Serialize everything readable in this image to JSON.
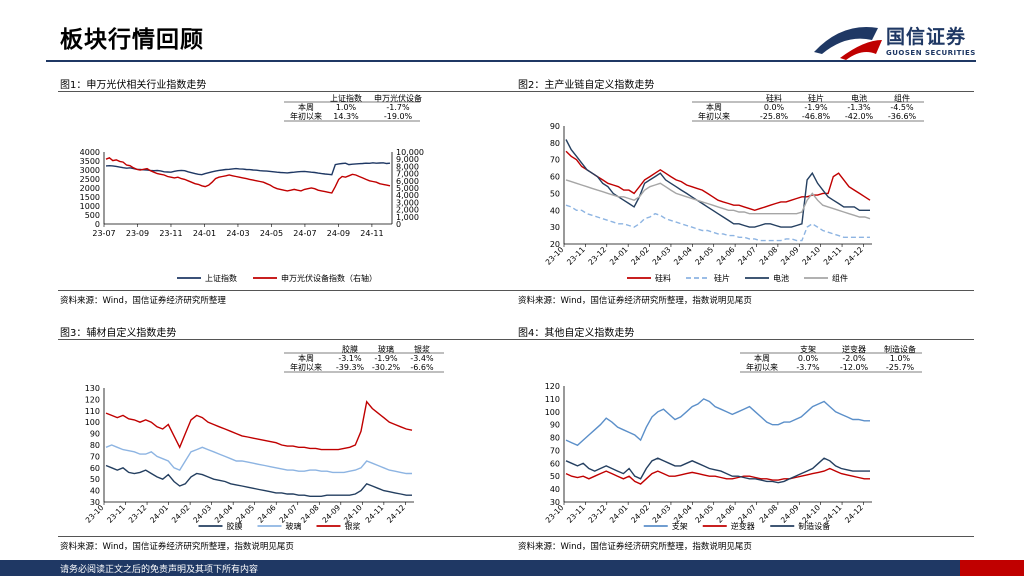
{
  "page": {
    "title": "板块行情回顾",
    "logo_cn": "国信证券",
    "logo_en": "GUOSEN SECURITIES",
    "footer": "请务必阅读正文之后的免责声明及其项下所有内容"
  },
  "colors": {
    "navy": "#1f3864",
    "red": "#c00000",
    "blue": "#243f60",
    "lightblue": "#8db4e2",
    "gray": "#a6a6a6",
    "midblue": "#5b8fc9"
  },
  "chart_data": [
    {
      "id": "c1",
      "type": "line",
      "title": "图1：申万光伏相关行业指数走势",
      "source": "资料来源：Wind，国信证券经济研究所整理",
      "stat_table": {
        "columns": [
          "上证指数",
          "申万光伏设备"
        ],
        "rows": [
          {
            "label": "本周",
            "values": [
              "1.0%",
              "-1.7%"
            ]
          },
          {
            "label": "年初以来",
            "values": [
              "14.3%",
              "-19.0%"
            ]
          }
        ]
      },
      "x_ticks": [
        "23-07",
        "23-09",
        "23-11",
        "24-01",
        "24-03",
        "24-05",
        "24-07",
        "24-09",
        "24-11"
      ],
      "left_axis": {
        "min": 0,
        "max": 4000,
        "ticks": [
          "0",
          "500",
          "1000",
          "1500",
          "2000",
          "2500",
          "3000",
          "3500",
          "4000"
        ]
      },
      "right_axis": {
        "min": 0,
        "max": 10000,
        "ticks": [
          "0",
          "1,000",
          "2,000",
          "3,000",
          "4,000",
          "5,000",
          "6,000",
          "7,000",
          "8,000",
          "9,000",
          "10,000"
        ]
      },
      "series": [
        {
          "name": "上证指数",
          "axis": "left",
          "color": "#1f3864",
          "values": [
            3230,
            3240,
            3230,
            3200,
            3160,
            3130,
            3100,
            3120,
            3080,
            3040,
            3030,
            3010,
            3000,
            2980,
            2960,
            2970,
            2950,
            2900,
            2890,
            2880,
            2930,
            2960,
            2980,
            2960,
            2900,
            2850,
            2800,
            2760,
            2740,
            2800,
            2850,
            2900,
            2940,
            2980,
            3000,
            3030,
            3040,
            3060,
            3080,
            3060,
            3050,
            3030,
            3020,
            3000,
            2990,
            2960,
            2950,
            2940,
            2920,
            2900,
            2880,
            2860,
            2850,
            2840,
            2860,
            2880,
            2900,
            2910,
            2920,
            2900,
            2880,
            2860,
            2830,
            2800,
            2780,
            2760,
            2740,
            3300,
            3340,
            3360,
            3380,
            3300,
            3320,
            3340,
            3350,
            3360,
            3380,
            3370,
            3400,
            3380,
            3390,
            3400,
            3360,
            3380
          ]
        },
        {
          "name": "申万光伏设备指数（右轴）",
          "axis": "right",
          "color": "#c00000",
          "values": [
            9000,
            9200,
            8800,
            8900,
            8700,
            8600,
            8200,
            8100,
            7800,
            7600,
            7500,
            7600,
            7700,
            7400,
            7200,
            7000,
            6900,
            6800,
            6600,
            6500,
            6400,
            6500,
            6300,
            6200,
            6000,
            5800,
            5600,
            5500,
            5300,
            5200,
            5400,
            5800,
            6300,
            6500,
            6600,
            6700,
            6800,
            6700,
            6600,
            6500,
            6400,
            6300,
            6200,
            6100,
            6000,
            5900,
            5800,
            5600,
            5400,
            5100,
            4900,
            4800,
            4700,
            4600,
            4700,
            4800,
            4700,
            4600,
            4800,
            4900,
            5000,
            4900,
            4700,
            4600,
            4500,
            4400,
            4300,
            5200,
            6200,
            6600,
            6500,
            6700,
            6900,
            6800,
            6600,
            6400,
            6200,
            6000,
            5900,
            5800,
            5600,
            5500,
            5400,
            5300
          ]
        }
      ]
    },
    {
      "id": "c2",
      "type": "line",
      "title": "图2：主产业链自定义指数走势",
      "source": "资料来源：Wind，国信证券经济研究所整理，指数说明见尾页",
      "stat_table": {
        "columns": [
          "硅料",
          "硅片",
          "电池",
          "组件"
        ],
        "rows": [
          {
            "label": "本周",
            "values": [
              "0.0%",
              "-1.9%",
              "-1.3%",
              "-4.5%"
            ]
          },
          {
            "label": "年初以来",
            "values": [
              "-25.8%",
              "-46.8%",
              "-42.0%",
              "-36.6%"
            ]
          }
        ]
      },
      "x_ticks": [
        "23-10",
        "23-11",
        "23-12",
        "24-01",
        "24-02",
        "24-03",
        "24-04",
        "24-05",
        "24-06",
        "24-07",
        "24-08",
        "24-09",
        "24-10",
        "24-11",
        "24-12"
      ],
      "y_axis": {
        "min": 20,
        "max": 90,
        "ticks": [
          "20",
          "30",
          "40",
          "50",
          "60",
          "70",
          "80",
          "90"
        ]
      },
      "series": [
        {
          "name": "硅料",
          "color": "#c00000",
          "values": [
            75,
            72,
            70,
            66,
            64,
            62,
            60,
            58,
            56,
            55,
            54,
            52,
            52,
            50,
            54,
            58,
            60,
            62,
            64,
            62,
            60,
            58,
            57,
            55,
            54,
            53,
            52,
            50,
            48,
            46,
            45,
            44,
            43,
            43,
            42,
            41,
            40,
            41,
            42,
            43,
            44,
            45,
            45,
            46,
            47,
            48,
            48,
            49,
            49,
            50,
            50,
            60,
            62,
            58,
            54,
            52,
            50,
            48,
            46
          ]
        },
        {
          "name": "硅片",
          "color": "#8db4e2",
          "dash": "5,3",
          "values": [
            43,
            42,
            40,
            40,
            38,
            37,
            36,
            35,
            34,
            33,
            32,
            32,
            31,
            30,
            32,
            35,
            36,
            38,
            37,
            35,
            34,
            33,
            32,
            31,
            30,
            29,
            28,
            28,
            27,
            26,
            26,
            25,
            25,
            24,
            24,
            23,
            23,
            22,
            22,
            22,
            22,
            22,
            23,
            23,
            22,
            22,
            30,
            32,
            30,
            28,
            27,
            26,
            25,
            24,
            24,
            24,
            24,
            24,
            24
          ]
        },
        {
          "name": "电池",
          "color": "#243f60",
          "values": [
            82,
            76,
            72,
            68,
            64,
            62,
            60,
            56,
            54,
            50,
            48,
            46,
            44,
            42,
            48,
            56,
            58,
            60,
            62,
            58,
            56,
            54,
            52,
            50,
            48,
            46,
            44,
            42,
            40,
            38,
            36,
            34,
            32,
            32,
            31,
            30,
            30,
            31,
            32,
            32,
            31,
            30,
            30,
            30,
            31,
            32,
            58,
            62,
            56,
            52,
            48,
            46,
            44,
            42,
            42,
            42,
            40,
            40,
            40
          ]
        },
        {
          "name": "组件",
          "color": "#a6a6a6",
          "values": [
            58,
            57,
            56,
            55,
            54,
            53,
            52,
            51,
            50,
            49,
            48,
            48,
            47,
            46,
            48,
            52,
            54,
            55,
            56,
            54,
            52,
            50,
            49,
            48,
            47,
            46,
            45,
            44,
            43,
            42,
            41,
            40,
            40,
            39,
            39,
            38,
            38,
            38,
            38,
            38,
            38,
            38,
            38,
            38,
            38,
            39,
            46,
            50,
            46,
            43,
            42,
            41,
            40,
            39,
            38,
            37,
            36,
            36,
            35
          ]
        }
      ]
    },
    {
      "id": "c3",
      "type": "line",
      "title": "图3：辅材自定义指数走势",
      "source": "资料来源：Wind，国信证券经济研究所整理，指数说明见尾页",
      "stat_table": {
        "columns": [
          "胶膜",
          "玻璃",
          "银浆"
        ],
        "rows": [
          {
            "label": "本周",
            "values": [
              "-3.1%",
              "-1.9%",
              "-3.4%"
            ]
          },
          {
            "label": "年初以来",
            "values": [
              "-39.3%",
              "-30.2%",
              "-6.6%"
            ]
          }
        ]
      },
      "x_ticks": [
        "23-10",
        "23-11",
        "23-12",
        "24-01",
        "24-02",
        "24-03",
        "24-04",
        "24-05",
        "24-06",
        "24-07",
        "24-08",
        "24-09",
        "24-10",
        "24-11",
        "24-12"
      ],
      "y_axis": {
        "min": 30,
        "max": 130,
        "ticks": [
          "30",
          "40",
          "50",
          "60",
          "70",
          "80",
          "90",
          "100",
          "110",
          "120",
          "130"
        ]
      },
      "series": [
        {
          "name": "胶膜",
          "color": "#243f60",
          "values": [
            62,
            60,
            58,
            60,
            56,
            55,
            56,
            58,
            55,
            52,
            50,
            54,
            48,
            44,
            46,
            52,
            55,
            54,
            52,
            50,
            49,
            48,
            46,
            45,
            44,
            43,
            42,
            41,
            40,
            39,
            38,
            38,
            37,
            37,
            36,
            36,
            35,
            35,
            35,
            36,
            36,
            36,
            36,
            36,
            37,
            40,
            46,
            44,
            42,
            40,
            39,
            38,
            37,
            36,
            36
          ]
        },
        {
          "name": "玻璃",
          "color": "#8db4e2",
          "values": [
            78,
            80,
            78,
            76,
            75,
            74,
            72,
            72,
            74,
            70,
            68,
            66,
            60,
            58,
            66,
            74,
            76,
            78,
            76,
            74,
            72,
            70,
            68,
            66,
            66,
            65,
            64,
            63,
            62,
            61,
            60,
            59,
            58,
            58,
            57,
            57,
            58,
            58,
            57,
            57,
            56,
            56,
            56,
            57,
            58,
            60,
            66,
            64,
            62,
            60,
            58,
            57,
            56,
            55,
            55
          ]
        },
        {
          "name": "银浆",
          "color": "#c00000",
          "values": [
            108,
            106,
            104,
            106,
            103,
            102,
            100,
            102,
            100,
            96,
            94,
            98,
            88,
            78,
            90,
            102,
            106,
            104,
            100,
            98,
            96,
            94,
            92,
            90,
            88,
            87,
            86,
            85,
            84,
            83,
            82,
            80,
            79,
            79,
            78,
            78,
            77,
            77,
            76,
            76,
            76,
            76,
            77,
            78,
            80,
            92,
            118,
            112,
            108,
            104,
            100,
            98,
            96,
            94,
            93
          ]
        }
      ]
    },
    {
      "id": "c4",
      "type": "line",
      "title": "图4：其他自定义指数走势",
      "source": "资料来源：Wind，国信证券经济研究所整理，指数说明见尾页",
      "stat_table": {
        "columns": [
          "支架",
          "逆变器",
          "制造设备"
        ],
        "rows": [
          {
            "label": "本周",
            "values": [
              "0.0%",
              "-2.0%",
              "1.0%"
            ]
          },
          {
            "label": "年初以来",
            "values": [
              "-3.7%",
              "-12.0%",
              "-25.7%"
            ]
          }
        ]
      },
      "x_ticks": [
        "23-10",
        "23-11",
        "23-12",
        "24-01",
        "24-02",
        "24-03",
        "24-04",
        "24-05",
        "24-06",
        "24-07",
        "24-08",
        "24-09",
        "24-10",
        "24-11",
        "24-12"
      ],
      "y_axis": {
        "min": 30,
        "max": 120,
        "ticks": [
          "30",
          "40",
          "50",
          "60",
          "70",
          "80",
          "90",
          "100",
          "110",
          "120"
        ]
      },
      "series": [
        {
          "name": "支架",
          "color": "#5b8fc9",
          "values": [
            78,
            76,
            74,
            78,
            82,
            86,
            90,
            95,
            92,
            88,
            86,
            84,
            82,
            78,
            88,
            96,
            100,
            102,
            98,
            94,
            96,
            100,
            104,
            106,
            110,
            108,
            104,
            102,
            100,
            98,
            100,
            102,
            104,
            100,
            96,
            92,
            90,
            90,
            92,
            92,
            94,
            96,
            100,
            104,
            106,
            108,
            104,
            100,
            98,
            96,
            94,
            94,
            93,
            93
          ]
        },
        {
          "name": "逆变器",
          "color": "#c00000",
          "values": [
            52,
            50,
            49,
            50,
            48,
            50,
            52,
            54,
            52,
            50,
            48,
            50,
            46,
            44,
            48,
            52,
            54,
            52,
            50,
            50,
            51,
            52,
            53,
            52,
            51,
            50,
            50,
            49,
            48,
            48,
            49,
            50,
            50,
            49,
            48,
            48,
            47,
            47,
            48,
            48,
            49,
            50,
            51,
            52,
            53,
            54,
            56,
            54,
            52,
            51,
            50,
            49,
            48,
            48
          ]
        },
        {
          "name": "制造设备",
          "color": "#243f60",
          "values": [
            62,
            60,
            58,
            60,
            56,
            54,
            56,
            58,
            56,
            54,
            52,
            56,
            50,
            48,
            56,
            62,
            64,
            62,
            60,
            58,
            58,
            60,
            62,
            60,
            58,
            56,
            55,
            54,
            52,
            50,
            50,
            49,
            48,
            48,
            47,
            46,
            46,
            45,
            46,
            48,
            50,
            52,
            54,
            56,
            60,
            64,
            62,
            58,
            56,
            55,
            54,
            54,
            54,
            54
          ]
        }
      ]
    }
  ]
}
